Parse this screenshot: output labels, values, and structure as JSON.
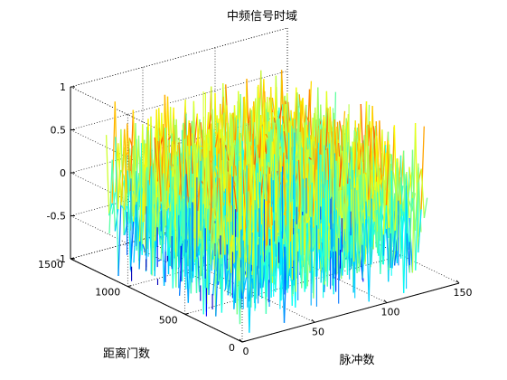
{
  "chart_data": {
    "type": "surface",
    "title": "中频信号时域",
    "xlabel": "脉冲数",
    "ylabel": "距离门数",
    "zlabel": "",
    "xlim": [
      0,
      150
    ],
    "ylim": [
      0,
      1500
    ],
    "zlim": [
      -1,
      1
    ],
    "x_ticks": [
      "0",
      "50",
      "100",
      "150"
    ],
    "y_ticks": [
      "0",
      "500",
      "1000",
      "1500"
    ],
    "z_ticks": [
      "-1",
      "-0.5",
      "0",
      "0.5",
      "1"
    ],
    "x_range_data": [
      1,
      128
    ],
    "y_range_data": [
      1,
      1200
    ],
    "z_range_data": [
      -1,
      1
    ],
    "grid": true,
    "colormap": "jet",
    "series": [
      {
        "description": "dense oscillating intermediate-frequency signal, values spanning -1 to 1 across all pulses and range gates"
      }
    ]
  }
}
